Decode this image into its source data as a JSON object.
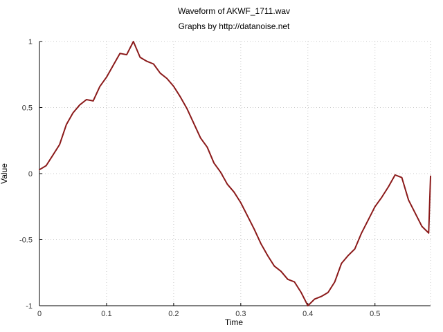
{
  "chart_data": {
    "type": "line",
    "title": "Waveform of AKWF_1711.wav",
    "subtitle": "Graphs by http://datanoise.net",
    "xlabel": "Time",
    "ylabel": "Value",
    "xlim": [
      0,
      0.5828
    ],
    "ylim": [
      -1,
      1
    ],
    "grid": true,
    "x_ticks": [
      0,
      0.1,
      0.2,
      0.3,
      0.4,
      0.5
    ],
    "y_ticks": [
      -1,
      -0.5,
      0,
      0.5,
      1
    ],
    "x_tick_labels": [
      "0",
      "0.1",
      "0.2",
      "0.3",
      "0.4",
      "0.5"
    ],
    "y_tick_labels": [
      "-1",
      "-0.5",
      "0",
      "0.5",
      "1"
    ],
    "series": [
      {
        "color": "#8b1a1a",
        "x": [
          0,
          0.01,
          0.02,
          0.03,
          0.04,
          0.05,
          0.06,
          0.07,
          0.08,
          0.09,
          0.1,
          0.11,
          0.12,
          0.13,
          0.14,
          0.15,
          0.16,
          0.17,
          0.18,
          0.19,
          0.2,
          0.21,
          0.22,
          0.23,
          0.24,
          0.25,
          0.26,
          0.27,
          0.28,
          0.29,
          0.3,
          0.31,
          0.32,
          0.33,
          0.34,
          0.35,
          0.36,
          0.37,
          0.38,
          0.39,
          0.4,
          0.41,
          0.42,
          0.43,
          0.44,
          0.45,
          0.46,
          0.47,
          0.48,
          0.49,
          0.5,
          0.51,
          0.52,
          0.53,
          0.54,
          0.55,
          0.56,
          0.57,
          0.58,
          0.5828
        ],
        "y": [
          0.03,
          0.06,
          0.14,
          0.22,
          0.37,
          0.46,
          0.52,
          0.56,
          0.55,
          0.66,
          0.73,
          0.82,
          0.91,
          0.9,
          1.0,
          0.88,
          0.85,
          0.83,
          0.76,
          0.72,
          0.66,
          0.58,
          0.49,
          0.38,
          0.27,
          0.2,
          0.08,
          0.01,
          -0.08,
          -0.14,
          -0.22,
          -0.32,
          -0.42,
          -0.53,
          -0.62,
          -0.7,
          -0.74,
          -0.8,
          -0.82,
          -0.9,
          -1.0,
          -0.95,
          -0.93,
          -0.9,
          -0.82,
          -0.68,
          -0.62,
          -0.57,
          -0.45,
          -0.35,
          -0.25,
          -0.18,
          -0.1,
          -0.01,
          -0.03,
          -0.2,
          -0.3,
          -0.4,
          -0.45,
          -0.02
        ]
      }
    ]
  }
}
